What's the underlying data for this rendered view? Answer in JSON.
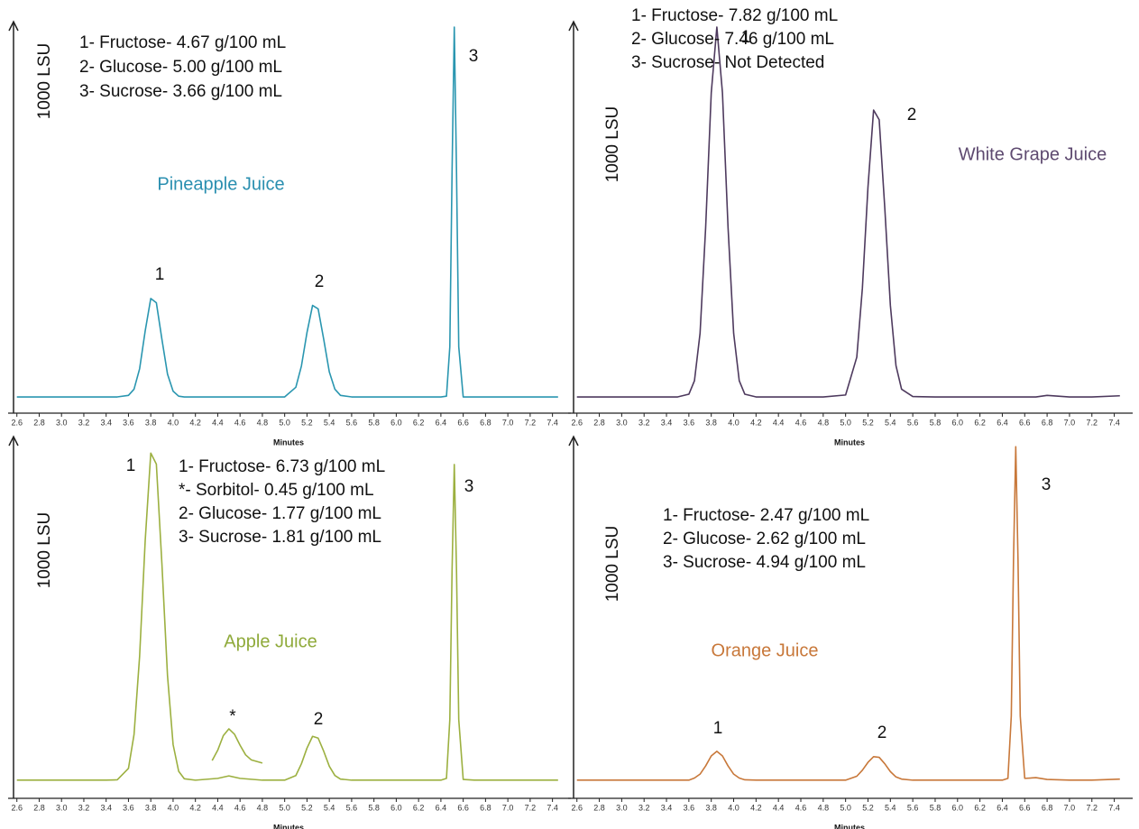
{
  "chart_data": [
    {
      "type": "line",
      "label": "Pineapple Juice",
      "label_color": "#2a8fb0",
      "notes": [
        "1- Fructose- 4.67 g/100 mL",
        "2- Glucose- 5.00 g/100 mL",
        "3- Sucrose- 3.66 g/100 mL"
      ],
      "peak_labels": [
        "1",
        "2",
        "3"
      ],
      "y_label": "1000 LSU",
      "x_label": "Minutes",
      "xlim": [
        2.57,
        7.5
      ],
      "ylim": [
        0,
        100
      ],
      "xticks": [
        2.6,
        2.8,
        {
          "value": 3,
          "label": "3.0"
        },
        3.2,
        3.4,
        3.6,
        3.8,
        {
          "value": 4,
          "label": "4.0"
        },
        4.2,
        4.4,
        4.6,
        4.8,
        {
          "value": 5,
          "label": "5.0"
        },
        5.2,
        5.4,
        5.6,
        5.8,
        {
          "value": 6,
          "label": "6.0"
        },
        6.2,
        6.4,
        6.6,
        6.8,
        {
          "value": 7,
          "label": "7.0"
        },
        7.2,
        7.4
      ],
      "x": [
        2.6,
        2.8,
        3.0,
        3.2,
        3.4,
        3.5,
        3.6,
        3.65,
        3.7,
        3.75,
        3.8,
        3.85,
        3.9,
        3.95,
        4.0,
        4.05,
        4.1,
        4.2,
        4.4,
        4.5,
        4.6,
        4.8,
        5.0,
        5.1,
        5.15,
        5.2,
        5.25,
        5.3,
        5.35,
        5.4,
        5.45,
        5.5,
        5.6,
        5.8,
        6.0,
        6.2,
        6.4,
        6.45,
        6.48,
        6.5,
        6.52,
        6.54,
        6.56,
        6.6,
        6.7,
        6.8,
        7.0,
        7.2,
        7.45
      ],
      "series": [
        {
          "color": "#2a96b0",
          "values": [
            4.2,
            4.2,
            4.2,
            4.2,
            4.2,
            4.2,
            4.6,
            6.2,
            11.5,
            21.3,
            29.7,
            28.6,
            19.1,
            10.1,
            5.7,
            4.4,
            4.2,
            4.2,
            4.2,
            4.2,
            4.2,
            4.2,
            4.2,
            6.7,
            12.2,
            20.9,
            27.9,
            27.0,
            19.1,
            10.7,
            6.2,
            4.6,
            4.2,
            4.2,
            4.2,
            4.2,
            4.2,
            4.4,
            17.2,
            62.4,
            100,
            62.4,
            17.2,
            4.2,
            4.2,
            4.2,
            4.2,
            4.2,
            4.2
          ]
        }
      ]
    },
    {
      "type": "line",
      "label": "White Grape Juice",
      "label_color": "#5e4a70",
      "notes": [
        "1- Fructose- 7.82 g/100 mL",
        "2- Glucose- 7.46 g/100 mL",
        "3- Sucrose- Not Detected"
      ],
      "peak_labels": [
        "1",
        "2"
      ],
      "y_label": "1000 LSU",
      "x_label": "Minutes",
      "xlim": [
        2.57,
        7.5
      ],
      "ylim": [
        0,
        100
      ],
      "xticks": [
        2.6,
        2.8,
        {
          "value": 3,
          "label": "3.0"
        },
        3.2,
        3.4,
        3.6,
        3.8,
        {
          "value": 4,
          "label": "4.0"
        },
        4.2,
        4.4,
        4.6,
        4.8,
        {
          "value": 5,
          "label": "5.0"
        },
        5.2,
        5.4,
        5.6,
        5.8,
        {
          "value": 6,
          "label": "6.0"
        },
        6.2,
        6.4,
        6.6,
        6.8,
        {
          "value": 7,
          "label": "7.0"
        },
        7.2,
        7.4
      ],
      "x": [
        2.6,
        2.8,
        3.0,
        3.2,
        3.4,
        3.5,
        3.6,
        3.65,
        3.7,
        3.75,
        3.8,
        3.85,
        3.9,
        3.95,
        4.0,
        4.05,
        4.1,
        4.2,
        4.4,
        4.5,
        4.6,
        4.8,
        5.0,
        5.1,
        5.15,
        5.2,
        5.25,
        5.3,
        5.35,
        5.4,
        5.45,
        5.5,
        5.6,
        5.8,
        6.0,
        6.2,
        6.4,
        6.45,
        6.48,
        6.5,
        6.52,
        6.54,
        6.56,
        6.6,
        6.7,
        6.8,
        7.0,
        7.2,
        7.45
      ],
      "series": [
        {
          "color": "#4e3a5e",
          "values": [
            4.2,
            4.2,
            4.2,
            4.2,
            4.2,
            4.2,
            4.9,
            8.4,
            20.7,
            48.1,
            83.0,
            100,
            83.0,
            48.1,
            20.7,
            8.4,
            4.9,
            4.2,
            4.2,
            4.2,
            4.2,
            4.2,
            4.7,
            14.5,
            32.4,
            58.6,
            78.5,
            76.0,
            53.2,
            27.9,
            12.3,
            6.2,
            4.3,
            4.2,
            4.2,
            4.2,
            4.2,
            4.2,
            4.2,
            4.2,
            4.2,
            4.2,
            4.2,
            4.2,
            4.2,
            4.6,
            4.2,
            4.2,
            4.5
          ]
        }
      ]
    },
    {
      "type": "line",
      "label": "Apple Juice",
      "label_color": "#8faa3a",
      "notes": [
        "1- Fructose- 6.73 g/100 mL",
        "*- Sorbitol-  0.45 g/100 mL",
        "2- Glucose- 1.77 g/100 mL",
        "3- Sucrose- 1.81 g/100 mL"
      ],
      "peak_labels": [
        "1",
        "*",
        "2",
        "3"
      ],
      "y_label": "1000 LSU",
      "x_label": "Minutes",
      "xlim": [
        2.57,
        7.5
      ],
      "ylim": [
        0,
        100
      ],
      "xticks": [
        2.6,
        2.8,
        {
          "value": 3,
          "label": "3.0"
        },
        3.2,
        3.4,
        3.6,
        3.8,
        {
          "value": 4,
          "label": "4.0"
        },
        4.2,
        4.4,
        4.6,
        4.8,
        {
          "value": 5,
          "label": "5.0"
        },
        5.2,
        5.4,
        5.6,
        5.8,
        {
          "value": 6,
          "label": "6.0"
        },
        6.2,
        6.4,
        6.6,
        6.8,
        {
          "value": 7,
          "label": "7.0"
        },
        7.2,
        7.4
      ],
      "x": [
        2.6,
        2.8,
        3.0,
        3.2,
        3.4,
        3.5,
        3.6,
        3.65,
        3.7,
        3.75,
        3.8,
        3.85,
        3.9,
        3.95,
        4.0,
        4.05,
        4.1,
        4.2,
        4.4,
        4.5,
        4.6,
        4.8,
        5.0,
        5.1,
        5.15,
        5.2,
        5.25,
        5.3,
        5.35,
        5.4,
        5.45,
        5.5,
        5.6,
        5.8,
        6.0,
        6.2,
        6.4,
        6.45,
        6.48,
        6.5,
        6.52,
        6.54,
        6.56,
        6.6,
        6.7,
        6.8,
        7.0,
        7.2,
        7.45
      ],
      "series": [
        {
          "color": "#9cb040",
          "values": [
            5.1,
            5.1,
            5.1,
            5.1,
            5.1,
            5.2,
            8.4,
            17.9,
            39.9,
            72.3,
            96.9,
            93.8,
            65.7,
            34.4,
            15.1,
            7.6,
            5.5,
            5.1,
            5.6,
            6.3,
            5.6,
            5.1,
            5.1,
            6.4,
            9.7,
            14.1,
            17.4,
            16.9,
            13.2,
            9.0,
            6.4,
            5.4,
            5.1,
            5.1,
            5.1,
            5.1,
            5.1,
            5.6,
            22.1,
            63.8,
            93.7,
            63.8,
            22.1,
            5.3,
            5.1,
            5.1,
            5.1,
            5.1,
            5.1
          ]
        },
        {
          "color": "#9cb040",
          "x": [
            4.35,
            4.4,
            4.45,
            4.5,
            4.55,
            4.6,
            4.65,
            4.7,
            4.8
          ],
          "values": [
            10.6,
            13.5,
            17.6,
            19.5,
            18.0,
            14.9,
            12.2,
            10.8,
            9.9
          ]
        }
      ]
    },
    {
      "type": "line",
      "label": "Orange Juice",
      "label_color": "#c8783a",
      "notes": [
        "1- Fructose- 2.47 g/100 mL",
        "2- Glucose- 2.62 g/100 mL",
        "3- Sucrose- 4.94 g/100 mL"
      ],
      "peak_labels": [
        "1",
        "2",
        "3"
      ],
      "y_label": "1000 LSU",
      "x_label": "Minutes",
      "xlim": [
        2.57,
        7.5
      ],
      "ylim": [
        0,
        100
      ],
      "xticks": [
        2.6,
        2.8,
        {
          "value": 3,
          "label": "3.0"
        },
        3.2,
        3.4,
        3.6,
        3.8,
        {
          "value": 4,
          "label": "4.0"
        },
        4.2,
        4.4,
        4.6,
        4.8,
        {
          "value": 5,
          "label": "5.0"
        },
        5.2,
        5.4,
        5.6,
        5.8,
        {
          "value": 6,
          "label": "6.0"
        },
        6.2,
        6.4,
        6.6,
        6.8,
        {
          "value": 7,
          "label": "7.0"
        },
        7.2,
        7.4
      ],
      "x": [
        2.6,
        2.8,
        3.0,
        3.2,
        3.4,
        3.5,
        3.6,
        3.65,
        3.7,
        3.75,
        3.8,
        3.85,
        3.9,
        3.95,
        4.0,
        4.05,
        4.1,
        4.2,
        4.4,
        4.5,
        4.6,
        4.8,
        5.0,
        5.1,
        5.15,
        5.2,
        5.25,
        5.3,
        5.35,
        5.4,
        5.45,
        5.5,
        5.6,
        5.8,
        6.0,
        6.2,
        6.4,
        6.45,
        6.48,
        6.5,
        6.52,
        6.54,
        6.56,
        6.6,
        6.7,
        6.8,
        7.0,
        7.2,
        7.45
      ],
      "series": [
        {
          "color": "#c8783a",
          "values": [
            5.1,
            5.1,
            5.1,
            5.1,
            5.1,
            5.1,
            5.1,
            5.7,
            6.8,
            9.1,
            11.9,
            13.2,
            11.9,
            9.1,
            6.8,
            5.7,
            5.2,
            5.1,
            5.1,
            5.1,
            5.1,
            5.1,
            5.1,
            6.2,
            7.9,
            10.1,
            11.7,
            11.5,
            9.7,
            7.5,
            6.0,
            5.4,
            5.1,
            5.1,
            5.1,
            5.1,
            5.1,
            5.6,
            23.1,
            67.1,
            98.7,
            67.1,
            23.1,
            5.6,
            5.8,
            5.3,
            5.1,
            5.1,
            5.4
          ]
        }
      ]
    }
  ]
}
